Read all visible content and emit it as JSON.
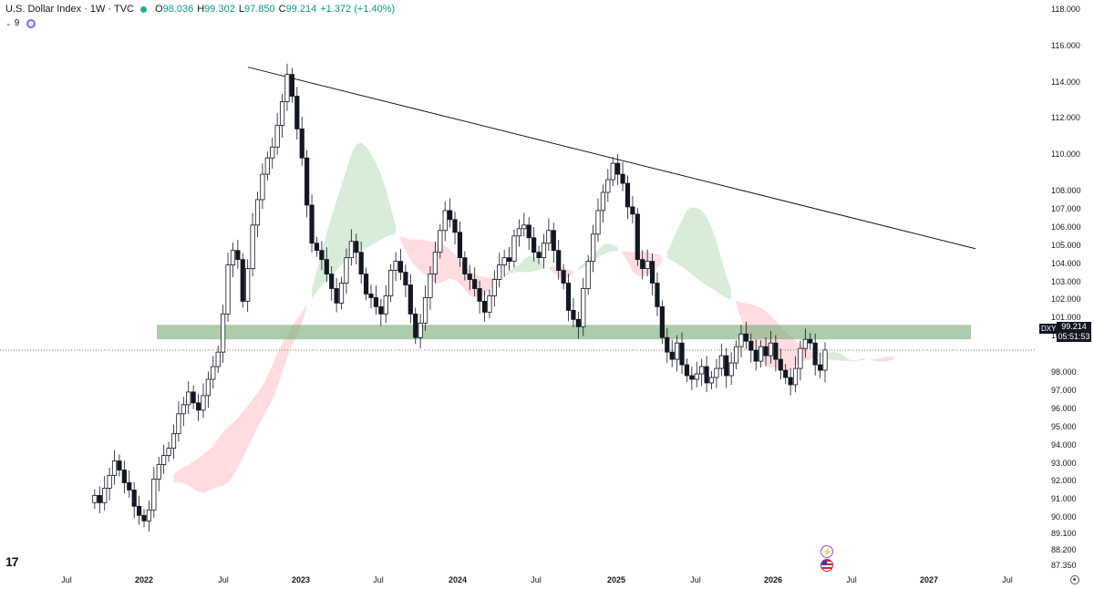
{
  "header": {
    "title": "U.S. Dollar Index · 1W · TVC",
    "open_label": "O",
    "open": "98.036",
    "high_label": "H",
    "high": "99.302",
    "low_label": "L",
    "low": "97.850",
    "close_label": "C",
    "close": "99.214",
    "change": "+1.372 (+1.40%)",
    "status_color": "#22ab94"
  },
  "indicators": {
    "count": "9"
  },
  "price_axis": {
    "ticks": [
      "118.000",
      "116.000",
      "114.000",
      "112.000",
      "110.000",
      "108.000",
      "107.000",
      "106.000",
      "105.000",
      "104.000",
      "103.000",
      "102.000",
      "101.000",
      "100.000",
      "98.000",
      "97.000",
      "96.000",
      "95.000",
      "94.000",
      "93.000",
      "92.000",
      "91.000",
      "90.000",
      "89.100",
      "88.200",
      "87.350"
    ]
  },
  "current": {
    "symbol": "DXY",
    "price": "99.214",
    "countdown": "05:51:53"
  },
  "time_axis": {
    "ticks": [
      {
        "label": "Jul",
        "year": false
      },
      {
        "label": "2022",
        "year": true
      },
      {
        "label": "Jul",
        "year": false
      },
      {
        "label": "2023",
        "year": true
      },
      {
        "label": "Jul",
        "year": false
      },
      {
        "label": "2024",
        "year": true
      },
      {
        "label": "Jul",
        "year": false
      },
      {
        "label": "2025",
        "year": true
      },
      {
        "label": "Jul",
        "year": false
      },
      {
        "label": "2026",
        "year": true
      },
      {
        "label": "Jul",
        "year": false
      },
      {
        "label": "2027",
        "year": true
      },
      {
        "label": "Jul",
        "year": false
      }
    ]
  },
  "logo": "17",
  "colors": {
    "up": "#089981",
    "down": "#f23645",
    "candle": "#131722",
    "cloud_bull": "#c8e6c9",
    "cloud_bear": "#ffcdd2",
    "zone": "#7fb07f",
    "trendline": "#131722"
  },
  "chart_data": {
    "type": "candlestick",
    "timeframe": "1W",
    "x_range": [
      "2021-05",
      "2027-08"
    ],
    "ylim": [
      87.35,
      118.0
    ],
    "last_price": 99.214,
    "overlays": {
      "ichimoku_cloud": true,
      "support_zone": [
        99.8,
        100.6
      ],
      "trendline": [
        {
          "date": "2022-09",
          "value": 114.8
        },
        {
          "date": "2027-05",
          "value": 104.8
        }
      ]
    },
    "closes": [
      91.2,
      90.8,
      91.6,
      92.3,
      93.1,
      92.6,
      91.9,
      91.5,
      90.6,
      90.1,
      89.8,
      90.4,
      92.1,
      92.9,
      93.4,
      93.8,
      94.6,
      95.7,
      96.2,
      96.9,
      96.3,
      95.9,
      96.7,
      97.6,
      98.3,
      99.1,
      101.2,
      103.9,
      104.7,
      104.2,
      101.9,
      103.7,
      106.1,
      107.5,
      108.9,
      109.8,
      110.4,
      111.6,
      112.9,
      114.4,
      113.2,
      111.4,
      109.8,
      107.2,
      105.1,
      104.7,
      104.2,
      103.4,
      102.6,
      101.8,
      102.9,
      104.3,
      105.2,
      104.6,
      103.4,
      102.3,
      102.1,
      101.6,
      101.2,
      102.2,
      103.6,
      104.1,
      103.5,
      102.8,
      101.2,
      99.9,
      100.7,
      102.1,
      103.4,
      104.6,
      105.8,
      106.9,
      106.4,
      105.7,
      104.3,
      103.4,
      103.1,
      102.6,
      101.9,
      101.3,
      102.2,
      103.1,
      103.9,
      104.3,
      104.1,
      105.5,
      105.9,
      106.1,
      105.4,
      104.6,
      104.3,
      105.1,
      105.8,
      104.7,
      103.6,
      102.9,
      101.4,
      100.9,
      100.5,
      102.6,
      104.1,
      105.6,
      106.9,
      107.9,
      108.6,
      109.5,
      108.9,
      108.4,
      107.1,
      106.7,
      104.2,
      103.7,
      104.1,
      102.9,
      101.6,
      99.9,
      99.1,
      98.7,
      99.6,
      98.4,
      97.8,
      97.6,
      97.9,
      98.3,
      97.4,
      97.7,
      98.2,
      98.9,
      97.8,
      98.5,
      99.4,
      100.1,
      99.7,
      99.2,
      98.6,
      99.4,
      98.9,
      99.6,
      98.7,
      98.1,
      97.7,
      97.3,
      98.2,
      99.3,
      99.8,
      99.6,
      98.4,
      98.1,
      99.214
    ]
  }
}
